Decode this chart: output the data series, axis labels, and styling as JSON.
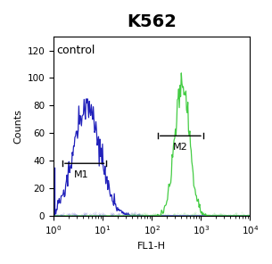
{
  "title": "K562",
  "xlabel": "FL1-H",
  "ylabel": "Counts",
  "xlim_log": [
    0,
    4
  ],
  "ylim": [
    0,
    130
  ],
  "yticks": [
    0,
    20,
    40,
    60,
    80,
    100,
    120
  ],
  "annotation_control": "control",
  "m1_label": "M1",
  "m2_label": "M2",
  "m1_x_start_log": 0.18,
  "m1_x_end_log": 1.08,
  "m1_y": 38,
  "m2_x_start_log": 2.12,
  "m2_x_end_log": 3.05,
  "m2_y": 58,
  "blue_color": "#2222bb",
  "green_color": "#44cc44",
  "blue_peak_log": 0.68,
  "blue_sigma": 0.27,
  "blue_scale": 85,
  "green_peak_log": 2.62,
  "green_sigma": 0.15,
  "green_scale": 104,
  "title_fontsize": 14,
  "title_fontweight": "bold",
  "label_fontsize": 8,
  "tick_fontsize": 7.5,
  "control_fontsize": 9,
  "bracket_fontsize": 8,
  "bg_color": "#ffffff"
}
